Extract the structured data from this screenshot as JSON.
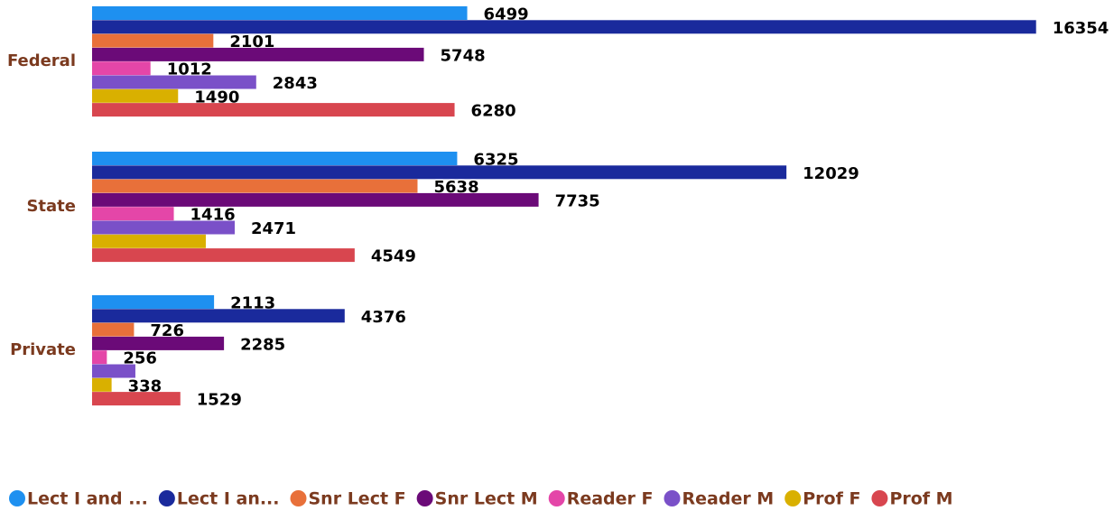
{
  "chart_data": {
    "type": "hbar",
    "categories": [
      "Federal",
      "State",
      "Private"
    ],
    "xlim": [
      0,
      17000
    ],
    "series": [
      {
        "name": "Lect I and ...",
        "color": "#1e90f0",
        "values": [
          6499,
          6325,
          2113
        ],
        "value_labels": [
          "6499",
          "6325",
          "2113"
        ]
      },
      {
        "name": "Lect I an...",
        "color": "#1a2a9c",
        "values": [
          16354,
          12029,
          4376
        ],
        "value_labels": [
          "16354",
          "12029",
          "4376"
        ]
      },
      {
        "name": "Snr Lect F",
        "color": "#e8703a",
        "values": [
          2101,
          5638,
          726
        ],
        "value_labels": [
          "2101",
          "5638",
          "726"
        ]
      },
      {
        "name": "Snr Lect M",
        "color": "#6b0a78",
        "values": [
          5748,
          7735,
          2285
        ],
        "value_labels": [
          "5748",
          "7735",
          "2285"
        ]
      },
      {
        "name": "Reader F",
        "color": "#e446a8",
        "values": [
          1012,
          1416,
          256
        ],
        "value_labels": [
          "1012",
          "1416",
          "256"
        ]
      },
      {
        "name": "Reader M",
        "color": "#7a50c8",
        "values": [
          2843,
          2471,
          750
        ],
        "value_labels": [
          "2843",
          "2471",
          null
        ]
      },
      {
        "name": "Prof F",
        "color": "#d9b000",
        "values": [
          1490,
          1970,
          338
        ],
        "value_labels": [
          "1490",
          null,
          "338"
        ]
      },
      {
        "name": "Prof M",
        "color": "#d8464f",
        "values": [
          6280,
          4549,
          1529
        ],
        "value_labels": [
          "6280",
          "4549",
          "1529"
        ]
      }
    ]
  }
}
